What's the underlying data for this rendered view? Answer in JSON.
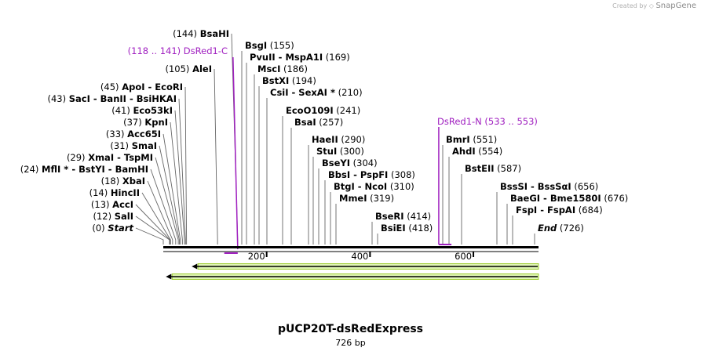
{
  "credit": {
    "prefix": "Created by",
    "brand": "SnapGene"
  },
  "sequence": {
    "name": "pUCP20T-dsRedExpress",
    "length_label": "726 bp",
    "length": 726
  },
  "ruler": {
    "ticks": [
      {
        "value": 200,
        "label": "200"
      },
      {
        "value": 400,
        "label": "400"
      },
      {
        "value": 600,
        "label": "600"
      }
    ]
  },
  "primers": [
    {
      "name": "DsRed1-C",
      "range": "(118 .. 141)",
      "start": 118,
      "end": 141
    },
    {
      "name": "DsRed1-N",
      "range": "(533 .. 553)",
      "start": 533,
      "end": 553
    }
  ],
  "features": [
    {
      "name": "feature-arrow-1",
      "start": 55,
      "end": 726,
      "direction": "reverse",
      "color": "#9ccc2e"
    },
    {
      "name": "feature-arrow-2",
      "start": 5,
      "end": 726,
      "direction": "reverse",
      "color": "#9ccc2e"
    }
  ],
  "sites": [
    {
      "pos": 0,
      "pos_label": "(0)",
      "names": "Start",
      "italic": true
    },
    {
      "pos": 12,
      "pos_label": "(12)",
      "names": "SalI"
    },
    {
      "pos": 13,
      "pos_label": "(13)",
      "names": "AccI"
    },
    {
      "pos": 14,
      "pos_label": "(14)",
      "names": "HincII"
    },
    {
      "pos": 18,
      "pos_label": "(18)",
      "names": "XbaI"
    },
    {
      "pos": 24,
      "pos_label": "(24)",
      "names": "MflI * - BstYI - BamHI"
    },
    {
      "pos": 29,
      "pos_label": "(29)",
      "names": "XmaI - TspMI"
    },
    {
      "pos": 31,
      "pos_label": "(31)",
      "names": "SmaI"
    },
    {
      "pos": 33,
      "pos_label": "(33)",
      "names": "Acc65I"
    },
    {
      "pos": 37,
      "pos_label": "(37)",
      "names": "KpnI"
    },
    {
      "pos": 41,
      "pos_label": "(41)",
      "names": "Eco53kI"
    },
    {
      "pos": 43,
      "pos_label": "(43)",
      "names": "SacI - BanII - BsiHKAI"
    },
    {
      "pos": 45,
      "pos_label": "(45)",
      "names": "ApoI - EcoRI"
    },
    {
      "pos": 105,
      "pos_label": "(105)",
      "names": "AleI"
    },
    {
      "pos": 144,
      "pos_label": "(144)",
      "names": "BsaHI"
    },
    {
      "pos": 155,
      "pos_label": "(155)",
      "names": "BsgI"
    },
    {
      "pos": 169,
      "pos_label": "(169)",
      "names": "PvuII - MspA1I"
    },
    {
      "pos": 186,
      "pos_label": "(186)",
      "names": "MscI"
    },
    {
      "pos": 194,
      "pos_label": "(194)",
      "names": "BstXI"
    },
    {
      "pos": 210,
      "pos_label": "(210)",
      "names": "CsiI - SexAI *"
    },
    {
      "pos": 241,
      "pos_label": "(241)",
      "names": "EcoO109I"
    },
    {
      "pos": 257,
      "pos_label": "(257)",
      "names": "BsaI"
    },
    {
      "pos": 290,
      "pos_label": "(290)",
      "names": "HaeII"
    },
    {
      "pos": 300,
      "pos_label": "(300)",
      "names": "StuI"
    },
    {
      "pos": 304,
      "pos_label": "(304)",
      "names": "BseYI"
    },
    {
      "pos": 308,
      "pos_label": "(308)",
      "names": "BbsI - PspFI"
    },
    {
      "pos": 310,
      "pos_label": "(310)",
      "names": "BtgI - NcoI"
    },
    {
      "pos": 319,
      "pos_label": "(319)",
      "names": "MmeI"
    },
    {
      "pos": 414,
      "pos_label": "(414)",
      "names": "BseRI"
    },
    {
      "pos": 418,
      "pos_label": "(418)",
      "names": "BsiEI"
    },
    {
      "pos": 551,
      "pos_label": "(551)",
      "names": "BmrI"
    },
    {
      "pos": 554,
      "pos_label": "(554)",
      "names": "AhdI"
    },
    {
      "pos": 587,
      "pos_label": "(587)",
      "names": "BstEII"
    },
    {
      "pos": 656,
      "pos_label": "(656)",
      "names": "BssSI - BssSαI"
    },
    {
      "pos": 676,
      "pos_label": "(676)",
      "names": "BaeGI - Bme1580I"
    },
    {
      "pos": 684,
      "pos_label": "(684)",
      "names": "FspI - FspAI"
    },
    {
      "pos": 726,
      "pos_label": "(726)",
      "names": "End",
      "italic": true
    }
  ]
}
